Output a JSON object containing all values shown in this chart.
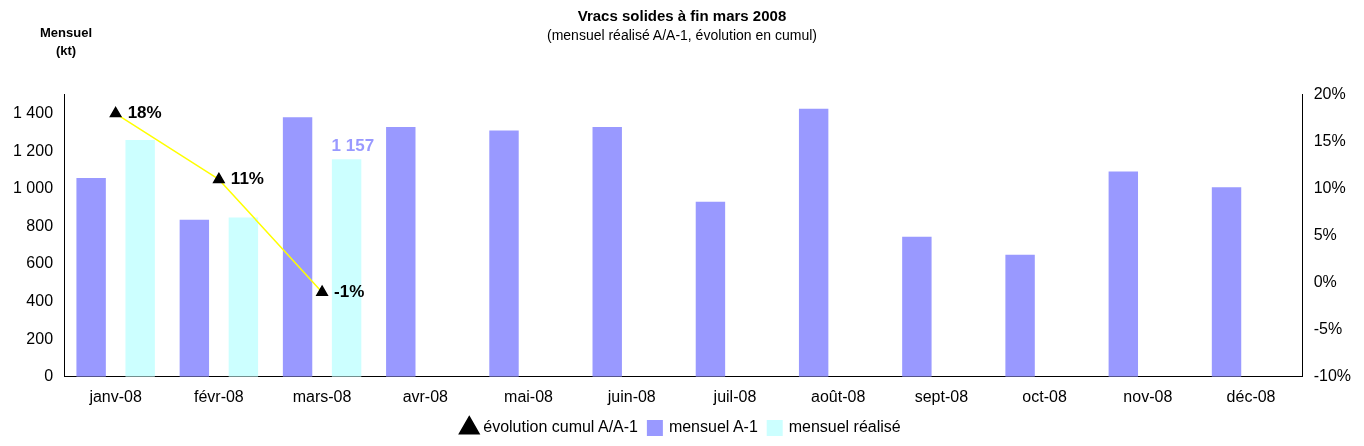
{
  "chart_data": {
    "type": "bar",
    "title": "Vracs solides à fin mars 2008",
    "subtitle": "(mensuel réalisé A/A-1, évolution en cumul)",
    "ylabel": "Mensuel\n(kt)",
    "categories": [
      "janv-08",
      "févr-08",
      "mars-08",
      "avr-08",
      "mai-08",
      "juin-08",
      "juil-08",
      "août-08",
      "sept-08",
      "oct-08",
      "nov-08",
      "déc-08"
    ],
    "series": [
      {
        "name": "mensuel A-1",
        "color": "#9999ff",
        "values": [
          1058,
          835,
          1381,
          1329,
          1310,
          1329,
          931,
          1426,
          745,
          649,
          1092,
          1008
        ]
      },
      {
        "name": "mensuel réalisé",
        "color": "#ccffff",
        "values": [
          1259,
          848,
          1157,
          null,
          null,
          null,
          null,
          null,
          null,
          null,
          null,
          null
        ],
        "value_labels": [
          null,
          null,
          "1 157",
          null,
          null,
          null,
          null,
          null,
          null,
          null,
          null,
          null
        ]
      },
      {
        "name": "évolution cumul A/A-1",
        "type": "line",
        "axis": "y2",
        "color": "#ffff00",
        "marker": "triangle",
        "values": [
          18,
          11,
          -1,
          null,
          null,
          null,
          null,
          null,
          null,
          null,
          null,
          null
        ],
        "value_labels": [
          "18%",
          "11%",
          "-1%",
          null,
          null,
          null,
          null,
          null,
          null,
          null,
          null,
          null
        ]
      }
    ],
    "ylim": [
      0,
      1500
    ],
    "yticks": [
      0,
      200,
      400,
      600,
      800,
      {
        "value": 1000,
        "label": "1 000"
      },
      {
        "value": 1200,
        "label": "1 200"
      },
      {
        "value": 1400,
        "label": "1 400"
      }
    ],
    "y2lim": [
      -10,
      20
    ],
    "y2ticks": [
      {
        "value": -10,
        "label": "-10%"
      },
      {
        "value": -5,
        "label": "-5%"
      },
      {
        "value": 0,
        "label": "0%"
      },
      {
        "value": 5,
        "label": "5%"
      },
      {
        "value": 10,
        "label": "10%"
      },
      {
        "value": 15,
        "label": "15%"
      },
      {
        "value": 20,
        "label": "20%"
      }
    ],
    "legend": "bottom",
    "grid": false
  }
}
